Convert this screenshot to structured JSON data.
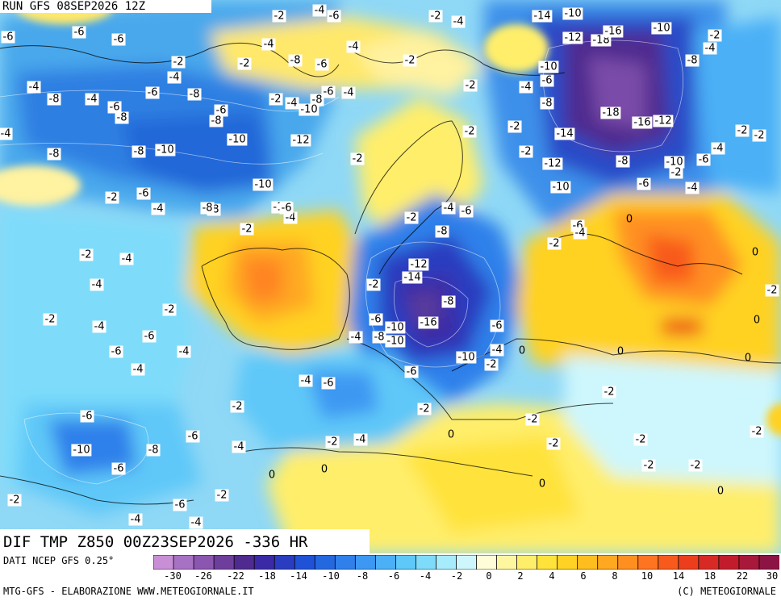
{
  "header": {
    "run_label": "RUN GFS 08SEP2026 12Z"
  },
  "title": {
    "label": "DIF TMP Z850 00Z23SEP2026 -336 HR"
  },
  "footer": {
    "source": "DATI NCEP GFS 0.25°",
    "credit_left": "MTG-GFS - ELABORAZIONE WWW.METEOGIORNALE.IT",
    "credit_right": "(C) METEOGIORNALE"
  },
  "colorbar": {
    "colors": [
      "#c98fd6",
      "#a872c4",
      "#8a56b0",
      "#6e3e9c",
      "#4f2a8f",
      "#3a2aa6",
      "#2a3cc0",
      "#1f52d6",
      "#2468e0",
      "#2f80ea",
      "#3c98f2",
      "#4cb0f6",
      "#5ec8f8",
      "#7edcfa",
      "#a6ecfc",
      "#cef7fd",
      "#fffcd8",
      "#fff6a0",
      "#ffee6a",
      "#ffe23a",
      "#ffd224",
      "#ffbe1e",
      "#ffa820",
      "#ff9020",
      "#ff7420",
      "#f85a1c",
      "#ec3e1c",
      "#d82a24",
      "#c21c2c",
      "#a8183a",
      "#8c1444"
    ],
    "tick_labels": [
      "-30",
      "-26",
      "-22",
      "-18",
      "-14",
      "-10",
      "-8",
      "-6",
      "-4",
      "-2",
      "0",
      "2",
      "4",
      "6",
      "8",
      "10",
      "14",
      "18",
      "22",
      "30"
    ]
  },
  "map_labels": [
    "-2",
    "-4",
    "-6",
    "-8",
    "-10",
    "-12",
    "-14",
    "-16",
    "-18",
    "0"
  ]
}
